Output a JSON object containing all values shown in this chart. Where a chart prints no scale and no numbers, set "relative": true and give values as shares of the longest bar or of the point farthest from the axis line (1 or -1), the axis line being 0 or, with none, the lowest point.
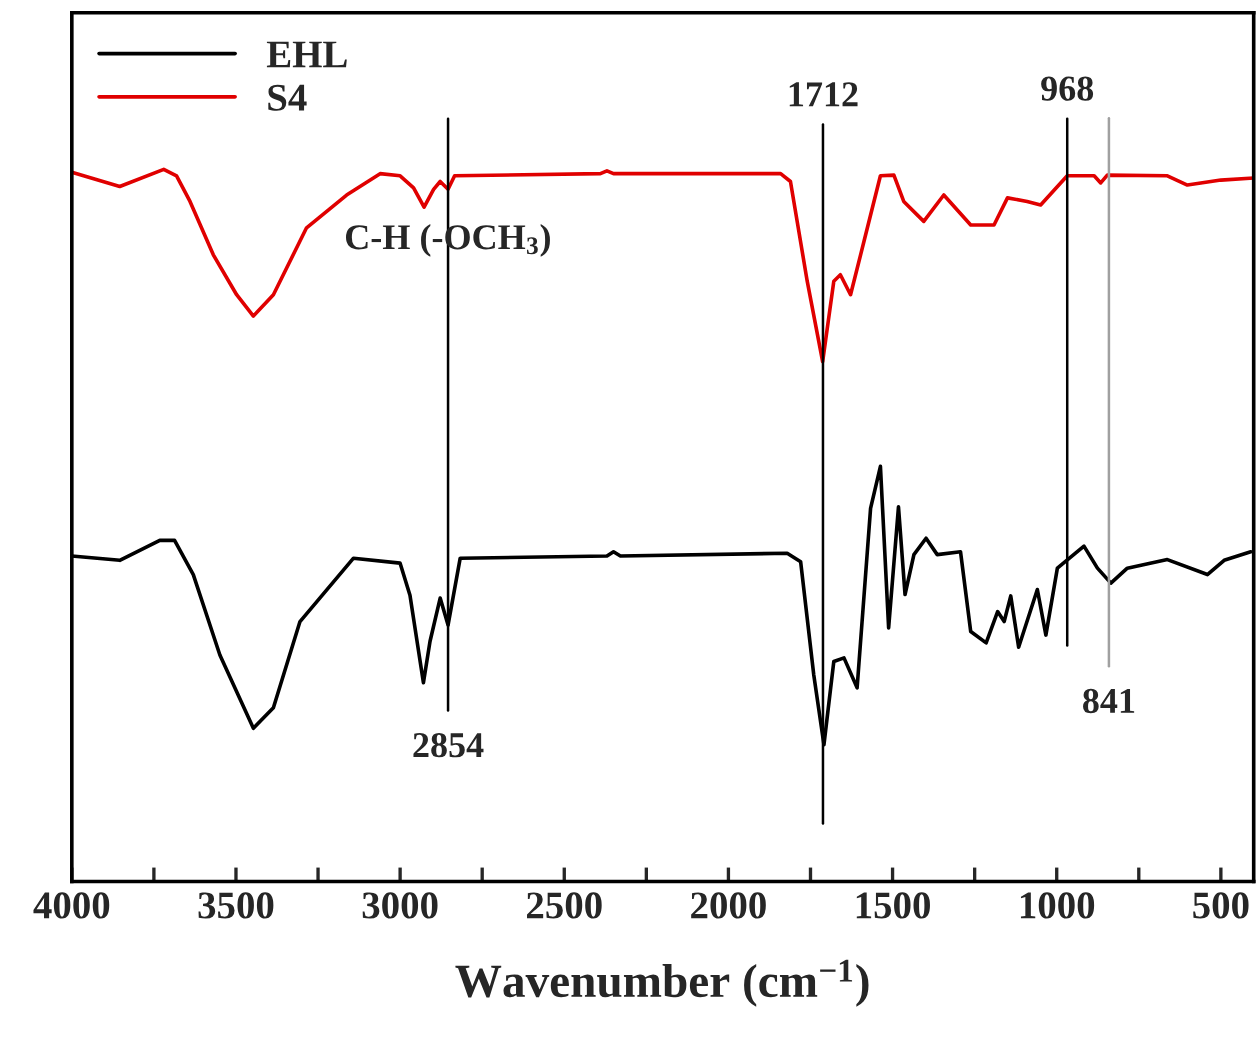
{
  "chart_data": {
    "type": "line",
    "relative": true,
    "xlabel": "Wavenumber (cm$^{−1}$)",
    "xlim": [
      4000,
      400
    ],
    "xticks": [
      4000,
      {
        "value": 3750,
        "label": null
      },
      3500,
      {
        "value": 3250,
        "label": null
      },
      3000,
      {
        "value": 2750,
        "label": null
      },
      2500,
      {
        "value": 2250,
        "label": null
      },
      2000,
      {
        "value": 1750,
        "label": null
      },
      1500,
      {
        "value": 1250,
        "label": null
      },
      1000,
      {
        "value": 750,
        "label": null
      },
      500
    ],
    "tick_labels": "x",
    "grid": false,
    "legend": "top left",
    "marker": "none",
    "line_style": "solid",
    "series": [
      {
        "name": "EHL",
        "color": "#000000",
        "x": [
          4000,
          3854,
          3732,
          3687,
          3630,
          3549,
          3447,
          3386,
          3305,
          3142,
          3000,
          2970,
          2929,
          2909,
          2878,
          2854,
          2817,
          2370,
          2350,
          2329,
          1821,
          1780,
          1740,
          1709,
          1679,
          1648,
          1608,
          1567,
          1537,
          1512,
          1482,
          1462,
          1435,
          1398,
          1364,
          1293,
          1262,
          1215,
          1180,
          1160,
          1140,
          1116,
          1059,
          1033,
          998,
          917,
          876,
          835,
          785,
          663,
          541,
          490,
          409
        ],
        "values": [
          0.457,
          0.451,
          0.479,
          0.479,
          0.431,
          0.318,
          0.215,
          0.244,
          0.365,
          0.454,
          0.447,
          0.402,
          0.279,
          0.337,
          0.398,
          0.36,
          0.454,
          0.457,
          0.463,
          0.457,
          0.461,
          0.449,
          0.29,
          0.192,
          0.309,
          0.314,
          0.272,
          0.524,
          0.583,
          0.356,
          0.526,
          0.403,
          0.459,
          0.482,
          0.459,
          0.463,
          0.351,
          0.335,
          0.379,
          0.365,
          0.401,
          0.329,
          0.41,
          0.346,
          0.44,
          0.471,
          0.44,
          0.419,
          0.44,
          0.452,
          0.431,
          0.451,
          0.463
        ]
      },
      {
        "name": "S4",
        "color": "#e00000",
        "x": [
          4000,
          3854,
          3720,
          3681,
          3640,
          3569,
          3498,
          3447,
          3386,
          3285,
          3163,
          3061,
          3000,
          2959,
          2927,
          2898,
          2878,
          2854,
          2834,
          2390,
          2370,
          2350,
          1841,
          1811,
          1760,
          1713,
          1679,
          1659,
          1628,
          1587,
          1537,
          1496,
          1466,
          1405,
          1344,
          1262,
          1191,
          1150,
          1090,
          1049,
          968,
          886,
          866,
          846,
          663,
          602,
          500,
          400
        ],
        "values": [
          0.996,
          0.976,
          1.0,
          0.991,
          0.955,
          0.88,
          0.824,
          0.794,
          0.824,
          0.918,
          0.964,
          0.994,
          0.991,
          0.974,
          0.947,
          0.972,
          0.983,
          0.972,
          0.991,
          0.994,
          0.998,
          0.994,
          0.994,
          0.983,
          0.843,
          0.73,
          0.843,
          0.852,
          0.824,
          0.899,
          0.991,
          0.992,
          0.955,
          0.927,
          0.964,
          0.922,
          0.922,
          0.96,
          0.955,
          0.95,
          0.991,
          0.991,
          0.981,
          0.992,
          0.991,
          0.978,
          0.985,
          0.988
        ]
      }
    ],
    "ref_lines": [
      {
        "axis": "x",
        "value": 2854,
        "label": "2854",
        "color": "#000000"
      },
      {
        "axis": "x",
        "value": 1712,
        "label": "1712",
        "color": "#000000"
      },
      {
        "axis": "x",
        "value": 968,
        "label": "968",
        "color": "#000000"
      },
      {
        "axis": "x",
        "value": 841,
        "label": "841",
        "color": "#a0a0a0"
      }
    ],
    "annotations": [
      {
        "text": "C-H (-OCH$_{3}$)",
        "x": 2854,
        "y": 0.9
      }
    ]
  }
}
